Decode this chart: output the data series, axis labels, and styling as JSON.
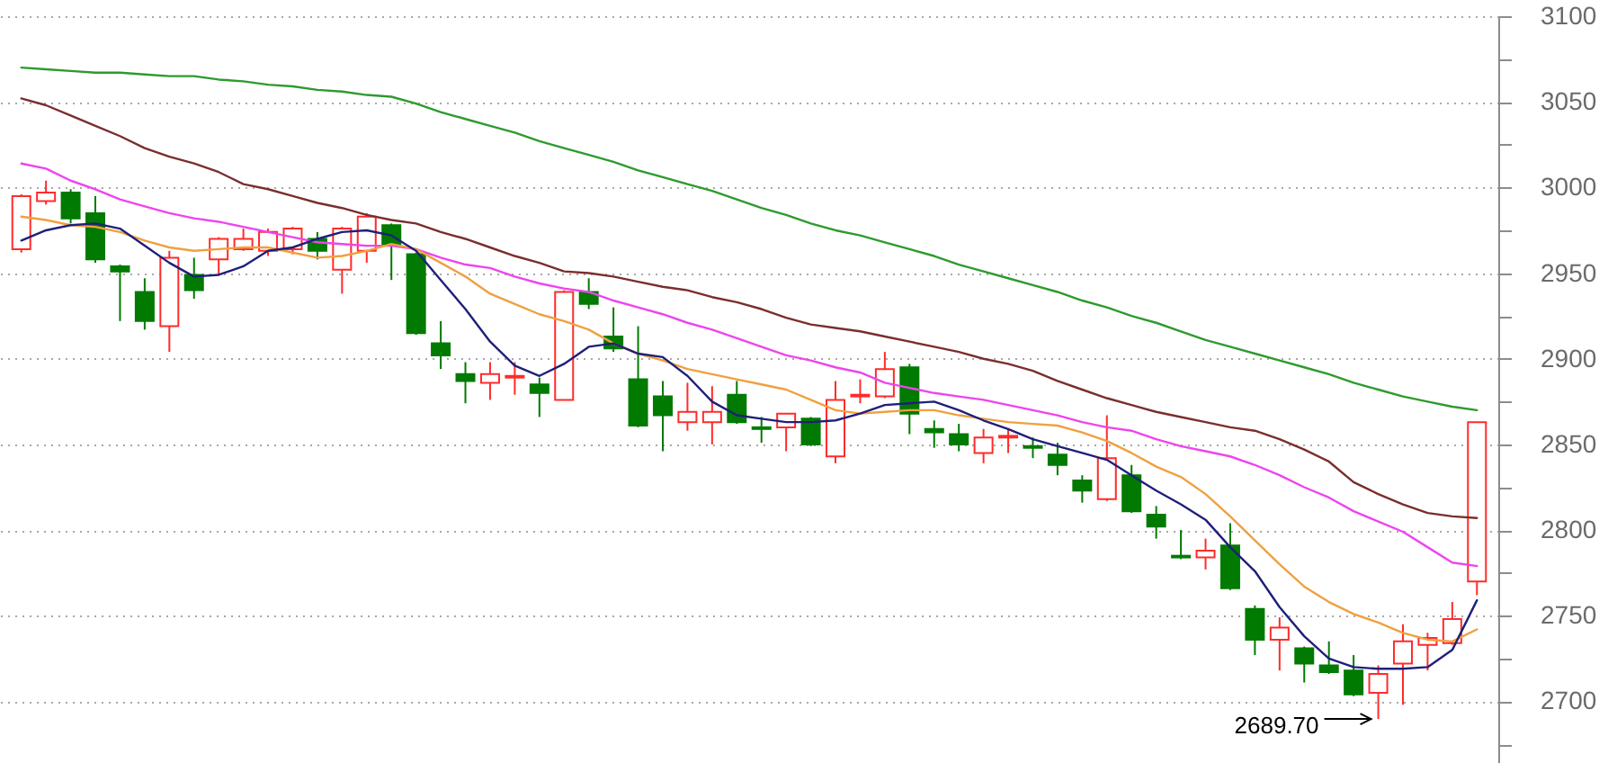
{
  "chart_data": {
    "type": "candlestick",
    "categories": [
      null,
      null,
      null,
      null,
      null,
      null,
      null,
      null,
      null,
      null,
      null,
      null,
      null,
      null,
      null,
      null,
      null,
      null,
      null,
      null,
      null,
      null,
      null,
      null,
      null,
      null,
      null,
      null,
      null,
      null,
      null,
      null,
      null,
      null,
      null,
      null,
      null,
      null,
      null,
      null,
      null,
      null,
      null,
      null,
      null,
      null,
      null,
      null,
      null,
      null,
      null,
      null,
      null,
      null,
      null,
      null,
      null,
      null,
      null,
      null
    ],
    "ohlc": [
      [
        2964,
        2996,
        2962,
        2995
      ],
      [
        2992,
        3004,
        2990,
        2997
      ],
      [
        2997,
        2999,
        2979,
        2982
      ],
      [
        2985,
        2995,
        2956,
        2958
      ],
      [
        2954,
        2955,
        2922,
        2951
      ],
      [
        2939,
        2947,
        2917,
        2922
      ],
      [
        2919,
        2963,
        2904,
        2959
      ],
      [
        2949,
        2959,
        2935,
        2940
      ],
      [
        2958,
        2971,
        2949,
        2970
      ],
      [
        2964,
        2976,
        2963,
        2970
      ],
      [
        2963,
        2976,
        2960,
        2974
      ],
      [
        2964,
        2977,
        2961,
        2976
      ],
      [
        2970,
        2974,
        2958,
        2963
      ],
      [
        2952,
        2977,
        2938,
        2976
      ],
      [
        2963,
        2985,
        2956,
        2983
      ],
      [
        2978,
        2979,
        2946,
        2966
      ],
      [
        2961,
        2962,
        2914,
        2915
      ],
      [
        2909,
        2922,
        2894,
        2902
      ],
      [
        2891,
        2898,
        2874,
        2887
      ],
      [
        2886,
        2898,
        2876,
        2891
      ],
      [
        2889,
        2898,
        2879,
        2890
      ],
      [
        2885,
        2889,
        2866,
        2880
      ],
      [
        2876,
        2940,
        2876,
        2939
      ],
      [
        2939,
        2947,
        2929,
        2932
      ],
      [
        2913,
        2930,
        2904,
        2906
      ],
      [
        2888,
        2919,
        2860,
        2861
      ],
      [
        2878,
        2887,
        2846,
        2867
      ],
      [
        2863,
        2886,
        2858,
        2869
      ],
      [
        2863,
        2884,
        2850,
        2869
      ],
      [
        2879,
        2887,
        2862,
        2863
      ],
      [
        2860,
        2866,
        2851,
        2859
      ],
      [
        2860,
        2868,
        2846,
        2868
      ],
      [
        2865,
        2866,
        2849,
        2850
      ],
      [
        2843,
        2887,
        2839,
        2876
      ],
      [
        2878,
        2888,
        2874,
        2879
      ],
      [
        2878,
        2904,
        2877,
        2894
      ],
      [
        2895,
        2897,
        2856,
        2868
      ],
      [
        2859,
        2864,
        2848,
        2857
      ],
      [
        2856,
        2862,
        2846,
        2850
      ],
      [
        2845,
        2859,
        2839,
        2854
      ],
      [
        2854,
        2859,
        2845,
        2855
      ],
      [
        2849,
        2854,
        2842,
        2848
      ],
      [
        2844,
        2851,
        2832,
        2838
      ],
      [
        2829,
        2832,
        2816,
        2823
      ],
      [
        2818,
        2867,
        2817,
        2842
      ],
      [
        2832,
        2838,
        2810,
        2811
      ],
      [
        2809,
        2814,
        2795,
        2802
      ],
      [
        2785,
        2800,
        2783,
        2784
      ],
      [
        2784,
        2795,
        2777,
        2788
      ],
      [
        2791,
        2804,
        2765,
        2766
      ],
      [
        2754,
        2756,
        2727,
        2736
      ],
      [
        2736,
        2749,
        2718,
        2743
      ],
      [
        2731,
        2732,
        2711,
        2722
      ],
      [
        2721,
        2735,
        2716,
        2717
      ],
      [
        2718,
        2727,
        2703,
        2704
      ],
      [
        2705,
        2721,
        2689.7,
        2716
      ],
      [
        2722,
        2745,
        2698,
        2735
      ],
      [
        2733,
        2740,
        2718,
        2737
      ],
      [
        2734,
        2758,
        2733,
        2748
      ],
      [
        2770,
        2863,
        2762,
        2863
      ]
    ],
    "colors": [
      "#ff2b2b",
      "#ff2b2b",
      "#007a00",
      "#007a00",
      "#007a00",
      "#007a00",
      "#ff2b2b",
      "#007a00",
      "#ff2b2b",
      "#ff2b2b",
      "#ff2b2b",
      "#ff2b2b",
      "#007a00",
      "#ff2b2b",
      "#ff2b2b",
      "#007a00",
      "#007a00",
      "#007a00",
      "#007a00",
      "#ff2b2b",
      "#ff2b2b",
      "#007a00",
      "#ff2b2b",
      "#007a00",
      "#007a00",
      "#007a00",
      "#007a00",
      "#ff2b2b",
      "#ff2b2b",
      "#007a00",
      "#007a00",
      "#ff2b2b",
      "#007a00",
      "#ff2b2b",
      "#ff2b2b",
      "#ff2b2b",
      "#007a00",
      "#007a00",
      "#007a00",
      "#ff2b2b",
      "#ff2b2b",
      "#007a00",
      "#007a00",
      "#007a00",
      "#ff2b2b",
      "#007a00",
      "#007a00",
      "#007a00",
      "#ff2b2b",
      "#007a00",
      "#007a00",
      "#ff2b2b",
      "#007a00",
      "#007a00",
      "#007a00",
      "#ff2b2b",
      "#ff2b2b",
      "#ff2b2b",
      "#ff2b2b",
      "#ff2b2b"
    ],
    "series": [
      {
        "type": "line",
        "color": "#2e9a2e",
        "values": [
          3070,
          3069,
          3068,
          3067,
          3067,
          3066,
          3065,
          3065,
          3063,
          3062,
          3060,
          3059,
          3057,
          3056,
          3054,
          3053,
          3049,
          3044,
          3040,
          3036,
          3032,
          3027,
          3023,
          3019,
          3015,
          3010,
          3006,
          3002,
          2998,
          2993,
          2988,
          2984,
          2979,
          2975,
          2972,
          2968,
          2964,
          2960,
          2955,
          2951,
          2947,
          2943,
          2939,
          2934,
          2930,
          2925,
          2921,
          2916,
          2911,
          2907,
          2903,
          2899,
          2895,
          2891,
          2886,
          2882,
          2878,
          2875,
          2872,
          2870
        ]
      },
      {
        "type": "line",
        "color": "#7a2e2e",
        "values": [
          3052,
          3048,
          3042,
          3036,
          3030,
          3023,
          3018,
          3014,
          3009,
          3002,
          2999,
          2995,
          2991,
          2988,
          2984,
          2981,
          2979,
          2974,
          2970,
          2965,
          2960,
          2956,
          2951,
          2950,
          2948,
          2945,
          2942,
          2940,
          2936,
          2933,
          2929,
          2924,
          2920,
          2918,
          2916,
          2913,
          2910,
          2907,
          2904,
          2900,
          2897,
          2893,
          2887,
          2882,
          2877,
          2873,
          2869,
          2866,
          2863,
          2860,
          2858,
          2853,
          2847,
          2840,
          2828,
          2821,
          2815,
          2810,
          2808,
          2807
        ]
      },
      {
        "type": "line",
        "color": "#ee44ee",
        "values": [
          3014,
          3011,
          3004,
          2999,
          2993,
          2989,
          2985,
          2982,
          2980,
          2977,
          2974,
          2971,
          2968,
          2967,
          2966,
          2966,
          2964,
          2959,
          2955,
          2953,
          2948,
          2944,
          2941,
          2939,
          2934,
          2930,
          2926,
          2921,
          2917,
          2912,
          2907,
          2902,
          2899,
          2895,
          2892,
          2886,
          2883,
          2880,
          2878,
          2876,
          2873,
          2870,
          2867,
          2863,
          2860,
          2858,
          2853,
          2849,
          2846,
          2843,
          2838,
          2832,
          2825,
          2819,
          2811,
          2805,
          2799,
          2790,
          2781,
          2779
        ]
      },
      {
        "type": "line",
        "color": "#f0a040",
        "values": [
          2983,
          2981,
          2978,
          2977,
          2974,
          2969,
          2965,
          2963,
          2964,
          2965,
          2965,
          2962,
          2959,
          2960,
          2963,
          2967,
          2964,
          2956,
          2948,
          2938,
          2932,
          2926,
          2922,
          2917,
          2909,
          2903,
          2899,
          2894,
          2891,
          2888,
          2885,
          2882,
          2876,
          2870,
          2868,
          2869,
          2870,
          2870,
          2867,
          2865,
          2863,
          2862,
          2861,
          2857,
          2852,
          2845,
          2837,
          2831,
          2821,
          2808,
          2794,
          2780,
          2767,
          2758,
          2751,
          2746,
          2740,
          2736,
          2735,
          2742
        ]
      },
      {
        "type": "line",
        "color": "#1f1f7a",
        "values": [
          2969,
          2975,
          2978,
          2979,
          2976,
          2966,
          2956,
          2948,
          2949,
          2954,
          2963,
          2965,
          2970,
          2974,
          2975,
          2972,
          2963,
          2946,
          2929,
          2910,
          2896,
          2890,
          2897,
          2907,
          2909,
          2903,
          2901,
          2890,
          2875,
          2867,
          2865,
          2863,
          2863,
          2864,
          2868,
          2873,
          2874,
          2875,
          2870,
          2864,
          2859,
          2853,
          2849,
          2845,
          2841,
          2832,
          2823,
          2815,
          2806,
          2790,
          2776,
          2755,
          2738,
          2725,
          2720,
          2719,
          2719,
          2720,
          2730,
          2759
        ]
      }
    ],
    "ylim": [
      2664,
      3100
    ],
    "yticks": [
      {
        "value": 2675,
        "label": null
      },
      2700,
      {
        "value": 2725,
        "label": null
      },
      2750,
      {
        "value": 2775,
        "label": null
      },
      2800,
      {
        "value": 2825,
        "label": null
      },
      2850,
      {
        "value": 2875,
        "label": null
      },
      2900,
      {
        "value": 2925,
        "label": null
      },
      2950,
      {
        "value": 2975,
        "label": null
      },
      3000,
      {
        "value": 3025,
        "label": null
      },
      3050,
      {
        "value": 3075,
        "label": null
      },
      3100
    ],
    "grid": "y",
    "tick_labels": "y",
    "annotations": [
      "2689.70"
    ]
  }
}
